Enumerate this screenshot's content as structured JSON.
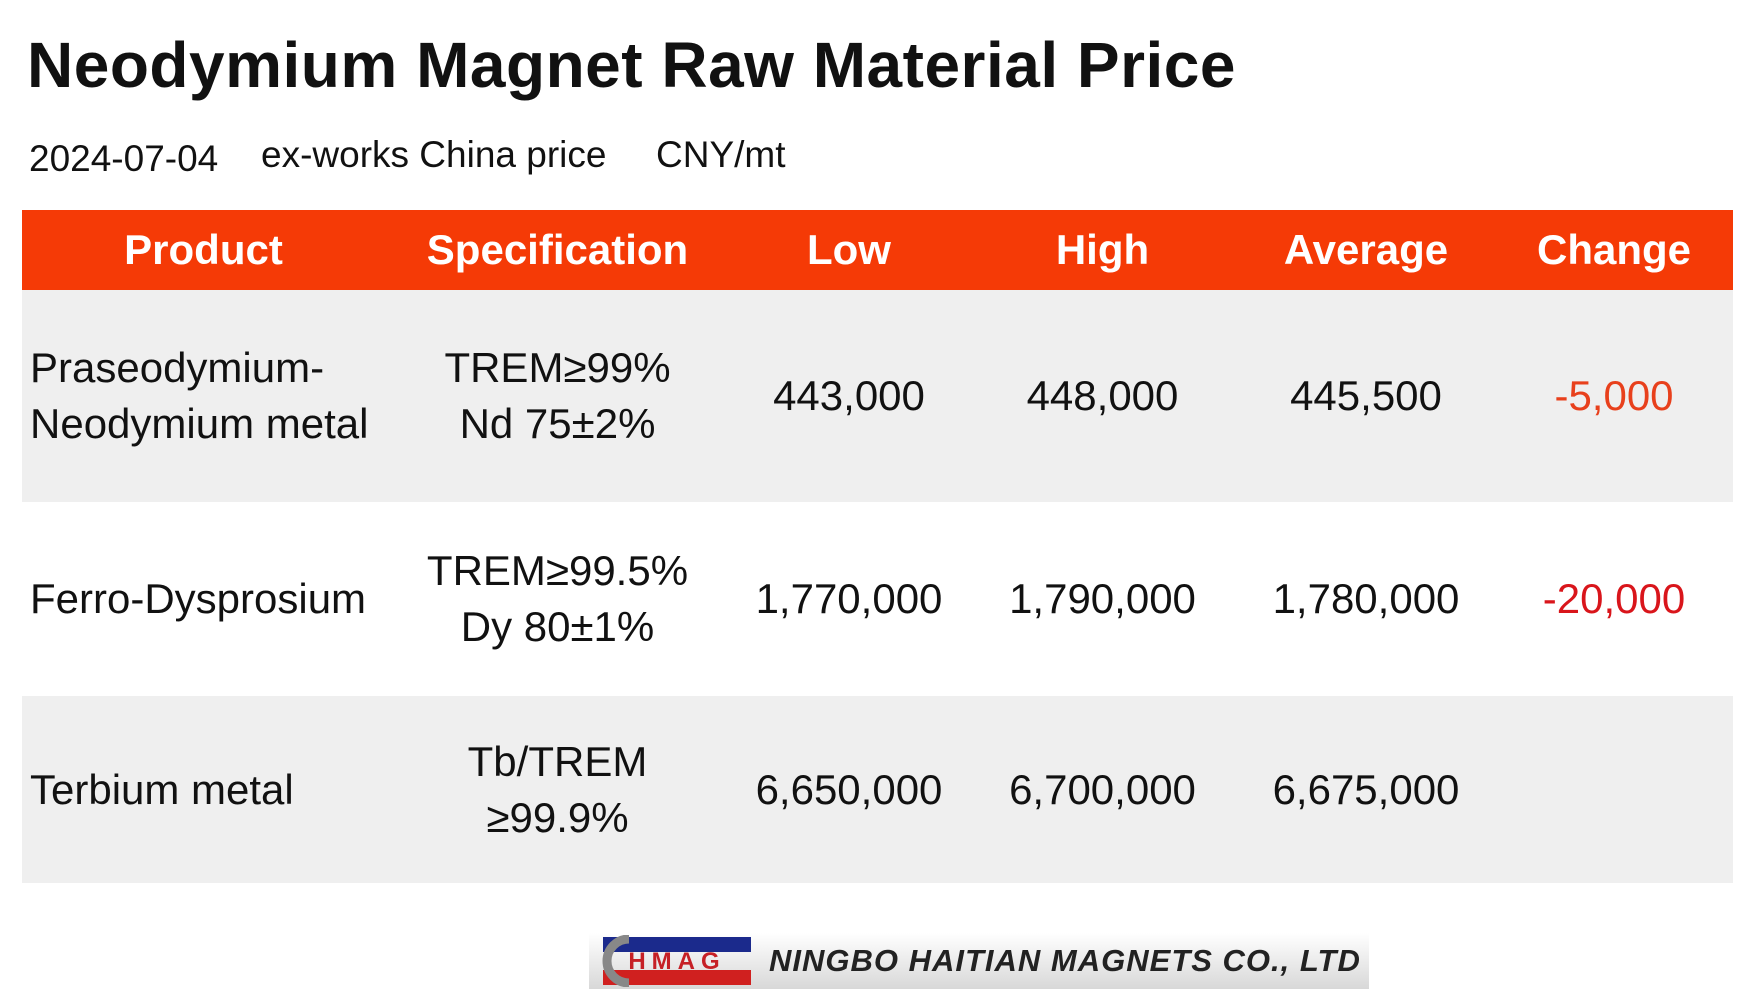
{
  "header": {
    "title": "Neodymium Magnet Raw Material Price",
    "date": "2024-07-04",
    "basis": "ex-works China price",
    "unit": "CNY/mt"
  },
  "table": {
    "columns": [
      "Product",
      "Specification",
      "Low",
      "High",
      "Average",
      "Change"
    ],
    "rows": [
      {
        "product": "Praseodymium-Neodymium metal",
        "specification": [
          "TREM≥99%",
          "Nd 75±2%"
        ],
        "low": "443,000",
        "high": "448,000",
        "average": "445,500",
        "change": "-5,000",
        "change_color": "#e8401c"
      },
      {
        "product": "Ferro-Dysprosium",
        "specification": [
          "TREM≥99.5%",
          "Dy 80±1%"
        ],
        "low": "1,770,000",
        "high": "1,790,000",
        "average": "1,780,000",
        "change": "-20,000",
        "change_color": "#d9151b"
      },
      {
        "product": "Terbium metal",
        "specification": [
          "Tb/TREM",
          "≥99.9%"
        ],
        "low": "6,650,000",
        "high": "6,700,000",
        "average": "6,675,000"
      }
    ]
  },
  "footer": {
    "logo": "HMAG",
    "company": "NINGBO HAITIAN MAGNETS CO., LTD"
  }
}
